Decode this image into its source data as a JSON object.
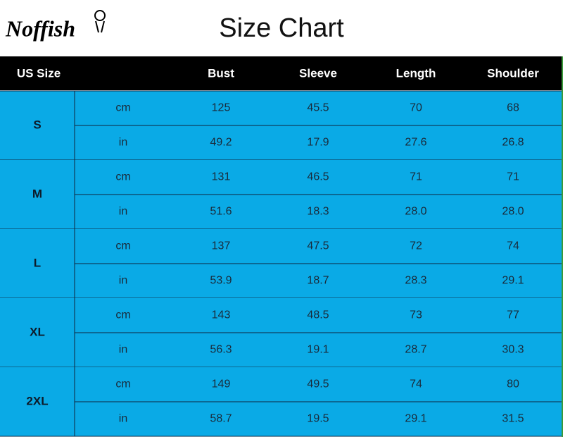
{
  "header": {
    "logo": "Noffish",
    "title": "Size Chart"
  },
  "table": {
    "columns": [
      "US Size",
      "Bust",
      "Sleeve",
      "Length",
      "Shoulder"
    ],
    "rows": [
      {
        "size": "S",
        "units": [
          {
            "unit": "cm",
            "values": [
              "125",
              "45.5",
              "70",
              "68"
            ]
          },
          {
            "unit": "in",
            "values": [
              "49.2",
              "17.9",
              "27.6",
              "26.8"
            ]
          }
        ]
      },
      {
        "size": "M",
        "units": [
          {
            "unit": "cm",
            "values": [
              "131",
              "46.5",
              "71",
              "71"
            ]
          },
          {
            "unit": "in",
            "values": [
              "51.6",
              "18.3",
              "28.0",
              "28.0"
            ]
          }
        ]
      },
      {
        "size": "L",
        "units": [
          {
            "unit": "cm",
            "values": [
              "137",
              "47.5",
              "72",
              "74"
            ]
          },
          {
            "unit": "in",
            "values": [
              "53.9",
              "18.7",
              "28.3",
              "29.1"
            ]
          }
        ]
      },
      {
        "size": "XL",
        "units": [
          {
            "unit": "cm",
            "values": [
              "143",
              "48.5",
              "73",
              "77"
            ]
          },
          {
            "unit": "in",
            "values": [
              "56.3",
              "19.1",
              "28.7",
              "30.3"
            ]
          }
        ]
      },
      {
        "size": "2XL",
        "units": [
          {
            "unit": "cm",
            "values": [
              "149",
              "49.5",
              "74",
              "80"
            ]
          },
          {
            "unit": "in",
            "values": [
              "58.7",
              "19.5",
              "29.1",
              "31.5"
            ]
          }
        ]
      }
    ]
  }
}
